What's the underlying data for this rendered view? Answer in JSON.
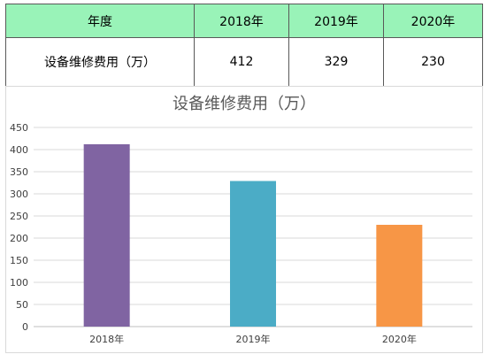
{
  "table": {
    "header": [
      "年度",
      "2018年",
      "2019年",
      "2020年"
    ],
    "row_label": "设备维修费用（万）",
    "row_values": [
      "412",
      "329",
      "230"
    ]
  },
  "chart_data": {
    "type": "bar",
    "title": "设备维修费用（万）",
    "categories": [
      "2018年",
      "2019年",
      "2020年"
    ],
    "values": [
      412,
      329,
      230
    ],
    "colors": [
      "#8064a2",
      "#4bacc6",
      "#f79646"
    ],
    "ylim": [
      0,
      450
    ],
    "yticks": [
      0,
      50,
      100,
      150,
      200,
      250,
      300,
      350,
      400,
      450
    ],
    "grid": true,
    "xlabel": "",
    "ylabel": ""
  }
}
